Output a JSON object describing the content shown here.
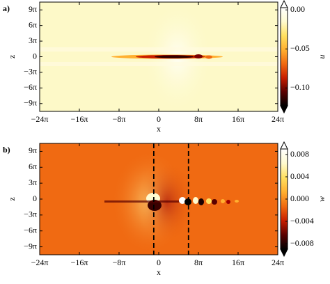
{
  "chart_data": [
    {
      "type": "heatmap",
      "panel_label": "a)",
      "x_label": "x",
      "y_label": "z",
      "colorbar_label": "u",
      "xlim": [
        -24,
        24
      ],
      "ylim": [
        -10.5,
        10.5
      ],
      "xticks": [
        {
          "value": -24,
          "label": "−24π"
        },
        {
          "value": -16,
          "label": "−16π"
        },
        {
          "value": -8,
          "label": "−8π"
        },
        0,
        {
          "value": 8,
          "label": "8π"
        },
        {
          "value": 16,
          "label": "16π"
        },
        {
          "value": 24,
          "label": "24π"
        }
      ],
      "yticks": [
        {
          "value": 9,
          "label": "9π"
        },
        {
          "value": 6,
          "label": "6π"
        },
        {
          "value": 3,
          "label": "3π"
        },
        0,
        {
          "value": -3,
          "label": "−3π"
        },
        {
          "value": -6,
          "label": "−6π"
        },
        {
          "value": -9,
          "label": "−9π"
        }
      ],
      "clim": [
        -0.13,
        0.01
      ],
      "cticks": [
        {
          "value": 0,
          "label": "0.00"
        },
        {
          "value": -0.05,
          "label": "−0.05"
        },
        {
          "value": -0.1,
          "label": "−0.10"
        }
      ],
      "colormap": [
        "#000000",
        "#5a0000",
        "#c81e00",
        "#f06a10",
        "#ffb030",
        "#ffe060",
        "#fffbd0",
        "#ffffff"
      ],
      "background": "#fdf9c8"
    },
    {
      "type": "heatmap",
      "panel_label": "b)",
      "x_label": "x",
      "y_label": "z",
      "colorbar_label": "w",
      "xlim": [
        -24,
        24
      ],
      "ylim": [
        -10.5,
        10.5
      ],
      "xticks": [
        {
          "value": -24,
          "label": "−24π"
        },
        {
          "value": -16,
          "label": "−16π"
        },
        {
          "value": -8,
          "label": "−8π"
        },
        0,
        {
          "value": 8,
          "label": "8π"
        },
        {
          "value": 16,
          "label": "16π"
        },
        {
          "value": 24,
          "label": "24π"
        }
      ],
      "yticks": [
        {
          "value": 9,
          "label": "9π"
        },
        {
          "value": 6,
          "label": "6π"
        },
        {
          "value": 3,
          "label": "3π"
        },
        0,
        {
          "value": -3,
          "label": "−3π"
        },
        {
          "value": -6,
          "label": "−6π"
        },
        {
          "value": -9,
          "label": "−9π"
        }
      ],
      "clim": [
        -0.01,
        0.01
      ],
      "cticks": [
        0.008,
        0.004,
        {
          "value": 0,
          "label": "0.000"
        },
        {
          "value": -0.004,
          "label": "−0.004"
        },
        {
          "value": -0.008,
          "label": "−0.008"
        }
      ],
      "colormap": [
        "#000000",
        "#5a0000",
        "#c81e00",
        "#f06a10",
        "#ffb030",
        "#ffe060",
        "#fffbd0",
        "#ffffff"
      ],
      "background": "#f06a12",
      "vlines": [
        -1,
        6
      ]
    }
  ]
}
